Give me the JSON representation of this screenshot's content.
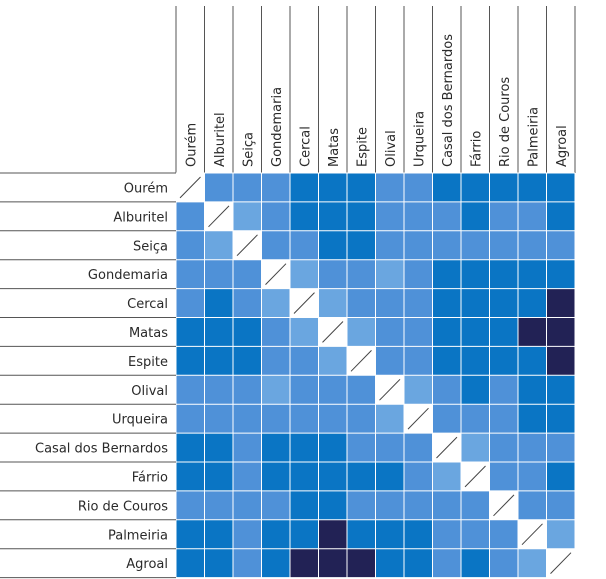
{
  "chart_data": {
    "type": "heatmap",
    "title": "",
    "row_labels": [
      "Ourém",
      "Alburitel",
      "Seiça",
      "Gondemaria",
      "Cercal",
      "Matas",
      "Espite",
      "Olival",
      "Urqueira",
      "Casal dos Bernardos",
      "Fárrio",
      "Rio de Couros",
      "Palmeiria",
      "Agroal"
    ],
    "col_labels": [
      "Ourém",
      "Alburitel",
      "Seiça",
      "Gondemaria",
      "Cercal",
      "Matas",
      "Espite",
      "Olival",
      "Urqueira",
      "Casal dos Bernardos",
      "Fárrio",
      "Rio de Couros",
      "Palmeiria",
      "Agroal"
    ],
    "levels": [
      "very light blue",
      "light blue",
      "mid blue",
      "strong blue",
      "dark navy"
    ],
    "level_colors": [
      "#b5d4f2",
      "#6aa6e0",
      "#4f91d8",
      "#0a75c4",
      "#222255"
    ],
    "diagonal": "slash",
    "values": [
      [
        null,
        2,
        2,
        2,
        3,
        3,
        3,
        2,
        2,
        3,
        3,
        3,
        3,
        3
      ],
      [
        2,
        null,
        1,
        2,
        3,
        3,
        3,
        2,
        2,
        2,
        3,
        2,
        2,
        3
      ],
      [
        2,
        1,
        null,
        2,
        2,
        3,
        3,
        2,
        2,
        2,
        2,
        2,
        2,
        2
      ],
      [
        2,
        2,
        2,
        null,
        1,
        2,
        2,
        1,
        2,
        3,
        3,
        3,
        3,
        3
      ],
      [
        2,
        3,
        2,
        1,
        null,
        1,
        2,
        2,
        2,
        3,
        3,
        3,
        3,
        4
      ],
      [
        3,
        3,
        3,
        2,
        1,
        null,
        1,
        2,
        2,
        3,
        3,
        3,
        4,
        4
      ],
      [
        3,
        3,
        3,
        2,
        2,
        1,
        null,
        2,
        2,
        3,
        3,
        3,
        3,
        4
      ],
      [
        2,
        2,
        2,
        1,
        2,
        2,
        2,
        null,
        1,
        2,
        3,
        2,
        3,
        3
      ],
      [
        2,
        2,
        2,
        2,
        2,
        2,
        2,
        1,
        null,
        2,
        2,
        2,
        3,
        3
      ],
      [
        3,
        3,
        2,
        3,
        3,
        3,
        2,
        2,
        2,
        null,
        1,
        2,
        2,
        2
      ],
      [
        3,
        3,
        2,
        3,
        3,
        3,
        3,
        3,
        2,
        1,
        null,
        2,
        2,
        3
      ],
      [
        2,
        2,
        2,
        2,
        3,
        3,
        2,
        2,
        2,
        2,
        2,
        null,
        2,
        2
      ],
      [
        3,
        3,
        2,
        3,
        3,
        4,
        3,
        3,
        3,
        2,
        2,
        2,
        null,
        1
      ],
      [
        3,
        3,
        2,
        3,
        4,
        4,
        4,
        3,
        3,
        2,
        3,
        2,
        1,
        null
      ]
    ]
  }
}
